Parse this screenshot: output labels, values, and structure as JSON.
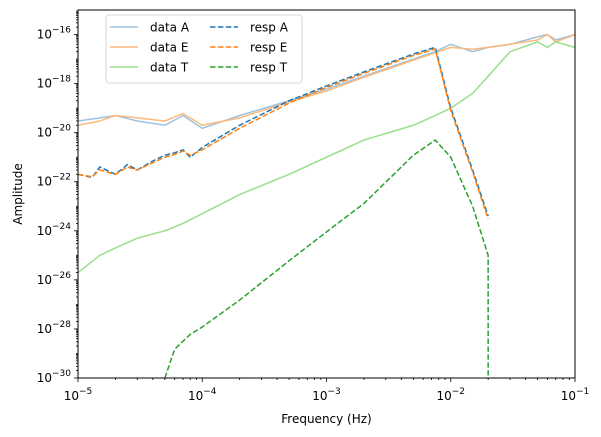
{
  "chart_data": {
    "type": "line",
    "xlabel": "Frequency (Hz)",
    "ylabel": "Amplitude",
    "x_scale": "log",
    "y_scale": "log",
    "xlim": [
      1e-05,
      0.1
    ],
    "ylim": [
      1e-30,
      1e-15
    ],
    "x_ticks": [
      {
        "value": 1e-05,
        "base": "10",
        "exp": "−5"
      },
      {
        "value": 0.0001,
        "base": "10",
        "exp": "−4"
      },
      {
        "value": 0.001,
        "base": "10",
        "exp": "−3"
      },
      {
        "value": 0.01,
        "base": "10",
        "exp": "−2"
      },
      {
        "value": 0.1,
        "base": "10",
        "exp": "−1"
      }
    ],
    "y_ticks": [
      {
        "value": 1e-30,
        "base": "10",
        "exp": "−30"
      },
      {
        "value": 1e-28,
        "base": "10",
        "exp": "−28"
      },
      {
        "value": 1e-26,
        "base": "10",
        "exp": "−26"
      },
      {
        "value": 1e-24,
        "base": "10",
        "exp": "−24"
      },
      {
        "value": 1e-22,
        "base": "10",
        "exp": "−22"
      },
      {
        "value": 1e-20,
        "base": "10",
        "exp": "−20"
      },
      {
        "value": 1e-18,
        "base": "10",
        "exp": "−18"
      },
      {
        "value": 1e-16,
        "base": "10",
        "exp": "−16"
      }
    ],
    "grid": false,
    "legend_position": "upper-left",
    "series": [
      {
        "name": "data A",
        "color": "#9ec3e0",
        "style": "solid",
        "x": [
          1e-05,
          1.5e-05,
          2e-05,
          3e-05,
          5e-05,
          7e-05,
          0.0001,
          0.0002,
          0.0005,
          0.001,
          0.002,
          0.005,
          0.0075,
          0.01,
          0.015,
          0.02,
          0.03,
          0.05,
          0.06,
          0.07,
          0.1
        ],
        "y": [
          3e-20,
          4e-20,
          5e-20,
          3e-20,
          2e-20,
          5e-20,
          1.5e-20,
          5e-20,
          2e-19,
          6e-19,
          2e-18,
          1e-17,
          2e-17,
          4e-17,
          2e-17,
          3e-17,
          4e-17,
          8e-17,
          1e-16,
          6e-17,
          1e-16
        ]
      },
      {
        "name": "data E",
        "color": "#fdb97d",
        "style": "solid",
        "x": [
          1e-05,
          1.5e-05,
          2e-05,
          3e-05,
          5e-05,
          7e-05,
          0.0001,
          0.0002,
          0.0005,
          0.001,
          0.002,
          0.005,
          0.0075,
          0.01,
          0.015,
          0.02,
          0.03,
          0.05,
          0.06,
          0.07,
          0.1
        ],
        "y": [
          2e-20,
          3e-20,
          5e-20,
          4e-20,
          3e-20,
          6e-20,
          2e-20,
          4e-20,
          1.8e-19,
          5e-19,
          1.8e-18,
          9e-18,
          1.8e-17,
          3e-17,
          2.5e-17,
          3e-17,
          4e-17,
          6e-17,
          1e-16,
          5e-17,
          1e-16
        ]
      },
      {
        "name": "data T",
        "color": "#98df8a",
        "style": "solid",
        "x": [
          1e-05,
          1.5e-05,
          2e-05,
          3e-05,
          5e-05,
          7e-05,
          0.0001,
          0.0002,
          0.0005,
          0.001,
          0.002,
          0.005,
          0.0075,
          0.01,
          0.015,
          0.02,
          0.03,
          0.05,
          0.06,
          0.07,
          0.1
        ],
        "y": [
          2e-26,
          1e-25,
          2e-25,
          5e-25,
          1e-24,
          2e-24,
          5e-24,
          3e-23,
          2e-22,
          1e-21,
          5e-21,
          2e-20,
          5e-20,
          1e-19,
          4e-19,
          2e-18,
          2e-17,
          5e-17,
          3e-17,
          5e-17,
          3e-17
        ]
      },
      {
        "name": "resp A",
        "color": "#1f77b4",
        "style": "dashed",
        "x": [
          1e-05,
          1.3e-05,
          1.5e-05,
          2e-05,
          2.5e-05,
          3e-05,
          4e-05,
          5e-05,
          6e-05,
          7e-05,
          8e-05,
          0.0001,
          0.0002,
          0.0005,
          0.001,
          0.002,
          0.005,
          0.0075,
          0.01,
          0.015,
          0.02
        ],
        "y": [
          2e-22,
          1.5e-22,
          4e-22,
          2e-22,
          5e-22,
          3e-22,
          7e-22,
          1.2e-21,
          1.5e-21,
          2e-21,
          1e-21,
          2.5e-21,
          2e-20,
          2e-19,
          8e-19,
          3e-18,
          1.6e-17,
          3e-17,
          1e-19,
          3e-22,
          4e-24
        ]
      },
      {
        "name": "resp E",
        "color": "#ff7f0e",
        "style": "dashed",
        "x": [
          1e-05,
          1.3e-05,
          1.5e-05,
          2e-05,
          2.5e-05,
          3e-05,
          4e-05,
          5e-05,
          6e-05,
          7e-05,
          8e-05,
          0.0001,
          0.0002,
          0.0005,
          0.001,
          0.002,
          0.005,
          0.0075,
          0.01,
          0.015,
          0.02
        ],
        "y": [
          2e-22,
          1.6e-22,
          3e-22,
          2e-22,
          4e-22,
          3e-22,
          6e-22,
          1e-21,
          1.3e-21,
          1.8e-21,
          1.2e-21,
          2e-21,
          1.5e-20,
          1.6e-19,
          7e-19,
          2.6e-18,
          1.4e-17,
          2.6e-17,
          8e-20,
          2.5e-22,
          3e-24
        ]
      },
      {
        "name": "resp T",
        "color": "#2ca02c",
        "style": "dashed",
        "x": [
          5e-05,
          6e-05,
          8e-05,
          0.0001,
          0.0002,
          0.0005,
          0.001,
          0.002,
          0.005,
          0.0075,
          0.01,
          0.015,
          0.02,
          0.02
        ],
        "y": [
          1e-30,
          1.5e-29,
          6e-29,
          1.2e-28,
          1.5e-27,
          6e-26,
          9e-25,
          1.3e-23,
          1.2e-21,
          5e-21,
          1e-21,
          1e-23,
          1e-25,
          1e-30
        ]
      }
    ]
  }
}
